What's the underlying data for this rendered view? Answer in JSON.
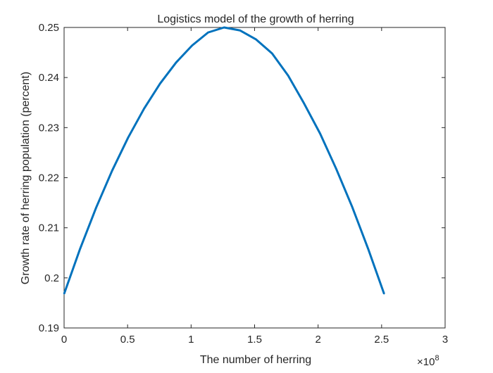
{
  "chart_data": {
    "type": "line",
    "title": "Logistics model of the growth of herring",
    "xlabel": "The number of herring",
    "ylabel": "Growth rate of herring population (percent)",
    "x_exponent": {
      "base": "×10",
      "power": "8"
    },
    "xlim": [
      0,
      3
    ],
    "ylim": [
      0.19,
      0.25
    ],
    "x_ticks": [
      0,
      0.5,
      1,
      1.5,
      2,
      2.5,
      3
    ],
    "x_tick_labels": [
      "0",
      "0.5",
      "1",
      "1.5",
      "2",
      "2.5",
      "3"
    ],
    "y_ticks": [
      0.19,
      0.2,
      0.21,
      0.22,
      0.23,
      0.24,
      0.25
    ],
    "y_tick_labels": [
      "0.19",
      "0.2",
      "0.21",
      "0.22",
      "0.23",
      "0.24",
      "0.25"
    ],
    "grid": false,
    "line_color": "#0072BD",
    "series": [
      {
        "x": [
          0,
          0.126,
          0.252,
          0.378,
          0.504,
          0.63,
          0.756,
          0.882,
          1.008,
          1.134,
          1.26,
          1.386,
          1.512,
          1.638,
          1.764,
          1.89,
          2.016,
          2.142,
          2.268,
          2.394,
          2.52
        ],
        "values": [
          0.1968,
          0.2058,
          0.214,
          0.2214,
          0.228,
          0.2338,
          0.2388,
          0.243,
          0.2464,
          0.249,
          0.25,
          0.2494,
          0.2476,
          0.2448,
          0.2404,
          0.2348,
          0.2288,
          0.2218,
          0.2142,
          0.2058,
          0.1968
        ]
      }
    ]
  }
}
